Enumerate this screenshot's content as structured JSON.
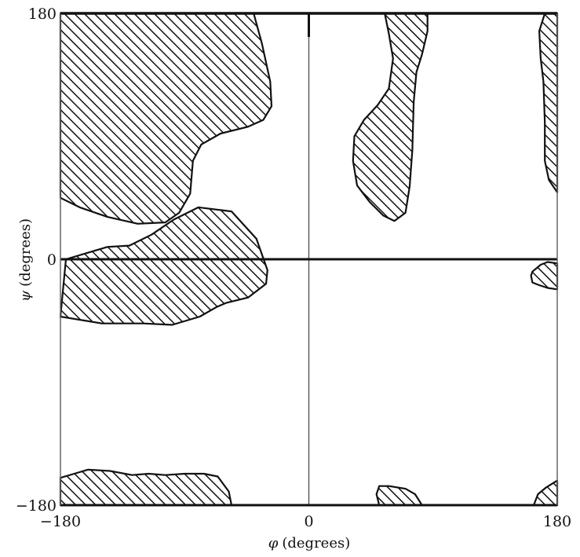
{
  "chart_data": {
    "type": "area",
    "xlabel_symbol": "φ",
    "xlabel_unit": "(degrees)",
    "ylabel_symbol": "ψ",
    "ylabel_unit": "(degrees)",
    "xlim": [
      -180,
      180
    ],
    "ylim": [
      -180,
      180
    ],
    "x_ticks": [
      {
        "value": -180,
        "label": "−180"
      },
      {
        "value": 0,
        "label": "0"
      },
      {
        "value": 180,
        "label": "180"
      }
    ],
    "y_ticks": [
      {
        "value": 180,
        "label": "180"
      },
      {
        "value": 0,
        "label": "0"
      },
      {
        "value": -180,
        "label": "−180"
      }
    ],
    "grid": false,
    "reference_lines": {
      "x": 0,
      "y": 0
    },
    "fill_pattern": "diagonal-hatch",
    "regions": [
      {
        "name": "upper-left",
        "points": [
          [
            -180,
            180
          ],
          [
            -40,
            180
          ],
          [
            -34,
            158
          ],
          [
            -28,
            130
          ],
          [
            -27,
            112
          ],
          [
            -33,
            102
          ],
          [
            -44,
            97
          ],
          [
            -64,
            92
          ],
          [
            -78,
            84
          ],
          [
            -84,
            72
          ],
          [
            -86,
            48
          ],
          [
            -94,
            34
          ],
          [
            -104,
            27
          ],
          [
            -124,
            26
          ],
          [
            -146,
            31
          ],
          [
            -166,
            38
          ],
          [
            -180,
            45
          ]
        ]
      },
      {
        "name": "upper-right-strip",
        "points": [
          [
            55,
            180
          ],
          [
            86,
            180
          ],
          [
            86,
            167
          ],
          [
            82,
            150
          ],
          [
            78,
            137
          ],
          [
            76,
            115
          ],
          [
            75,
            80
          ],
          [
            73,
            53
          ],
          [
            70,
            34
          ],
          [
            62,
            28
          ],
          [
            54,
            32
          ],
          [
            44,
            42
          ],
          [
            35,
            54
          ],
          [
            32,
            72
          ],
          [
            33,
            90
          ],
          [
            40,
            102
          ],
          [
            50,
            113
          ],
          [
            58,
            125
          ],
          [
            61,
            147
          ],
          [
            58,
            165
          ]
        ]
      },
      {
        "name": "right-edge-upper",
        "points": [
          [
            180,
            180
          ],
          [
            171,
            180
          ],
          [
            167,
            167
          ],
          [
            168,
            147
          ],
          [
            170,
            130
          ],
          [
            171,
            100
          ],
          [
            171,
            72
          ],
          [
            174,
            58
          ],
          [
            180,
            49
          ]
        ]
      },
      {
        "name": "left-middle",
        "points": [
          [
            -180,
            -42
          ],
          [
            -150,
            -47
          ],
          [
            -120,
            -47
          ],
          [
            -99,
            -48
          ],
          [
            -79,
            -42
          ],
          [
            -67,
            -35
          ],
          [
            -60,
            -32
          ],
          [
            -44,
            -28
          ],
          [
            -31,
            -18
          ],
          [
            -30,
            -8
          ],
          [
            -38,
            15
          ],
          [
            -56,
            35
          ],
          [
            -80,
            38
          ],
          [
            -98,
            29
          ],
          [
            -114,
            18
          ],
          [
            -130,
            10
          ],
          [
            -146,
            9
          ],
          [
            -176,
            0
          ]
        ]
      },
      {
        "name": "right-edge-middle",
        "points": [
          [
            180,
            -22
          ],
          [
            180,
            -3
          ],
          [
            173,
            -2
          ],
          [
            168,
            -4
          ],
          [
            162,
            -9
          ],
          [
            161,
            -12
          ],
          [
            162,
            -17
          ],
          [
            167,
            -19
          ],
          [
            173,
            -21
          ]
        ]
      },
      {
        "name": "bottom-left",
        "points": [
          [
            -180,
            -180
          ],
          [
            -56,
            -180
          ],
          [
            -58,
            -170
          ],
          [
            -66,
            -159
          ],
          [
            -76,
            -157
          ],
          [
            -90,
            -157
          ],
          [
            -104,
            -158
          ],
          [
            -116,
            -157
          ],
          [
            -128,
            -158
          ],
          [
            -144,
            -155
          ],
          [
            -160,
            -154
          ],
          [
            -170,
            -157
          ],
          [
            -180,
            -160
          ]
        ]
      },
      {
        "name": "bottom-center",
        "points": [
          [
            51,
            -180
          ],
          [
            82,
            -180
          ],
          [
            77,
            -172
          ],
          [
            70,
            -168
          ],
          [
            58,
            -166
          ],
          [
            51,
            -166
          ],
          [
            49,
            -172
          ]
        ]
      },
      {
        "name": "bottom-right-corner",
        "points": [
          [
            163,
            -180
          ],
          [
            180,
            -180
          ],
          [
            180,
            -162
          ],
          [
            172,
            -167
          ],
          [
            166,
            -172
          ]
        ]
      }
    ]
  }
}
